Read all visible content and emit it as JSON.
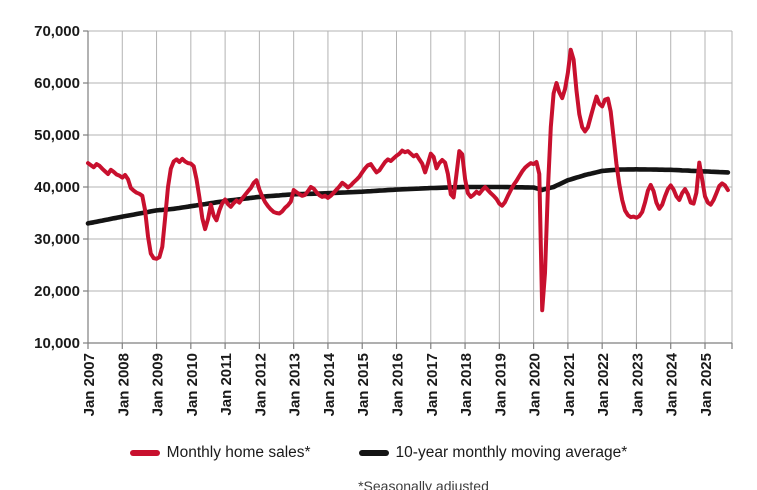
{
  "chart_data": {
    "type": "line",
    "title": "",
    "xlabel": "",
    "ylabel": "",
    "ylim": [
      10000,
      70000
    ],
    "y_tick_step": 10000,
    "grid": true,
    "legend_position": "bottom",
    "footnote": "*Seasonally adjusted",
    "y_tick_labels": [
      "10,000",
      "20,000",
      "30,000",
      "40,000",
      "50,000",
      "60,000",
      "70,000"
    ],
    "x_tick_labels": [
      "Jan 2007",
      "Jan 2008",
      "Jan 2009",
      "Jan 2010",
      "Jan 2011",
      "Jan 2012",
      "Jan 2013",
      "Jan 2014",
      "Jan 2015",
      "Jan 2016",
      "Jan 2017",
      "Jan 2018",
      "Jan 2019",
      "Jan 2020",
      "Jan 2021",
      "Jan 2022",
      "Jan 2023",
      "Jan 2024",
      "Jan 2025"
    ],
    "x_start_month": "Jan 2007",
    "x_end_month": "Sep 2025",
    "months_per_point": 1,
    "series": [
      {
        "name": "Monthly home sales*",
        "color": "#c8102e",
        "values": [
          44600,
          44200,
          43800,
          44400,
          44100,
          43500,
          43000,
          42500,
          43300,
          42900,
          42400,
          42200,
          41800,
          42300,
          41500,
          39800,
          39300,
          38900,
          38700,
          38300,
          35500,
          30500,
          27200,
          26300,
          26200,
          26500,
          28500,
          34000,
          40000,
          43500,
          44900,
          45300,
          44800,
          45400,
          44900,
          44600,
          44500,
          44000,
          41500,
          38000,
          34000,
          31900,
          33800,
          36600,
          34500,
          33600,
          35500,
          36900,
          37600,
          36700,
          36200,
          36900,
          37400,
          37000,
          37800,
          38500,
          39200,
          39800,
          40800,
          41300,
          39500,
          38200,
          37100,
          36300,
          35700,
          35200,
          35000,
          34900,
          35300,
          36000,
          36500,
          37200,
          39400,
          39000,
          38600,
          38300,
          38500,
          39200,
          40000,
          39700,
          39000,
          38400,
          38100,
          38300,
          37900,
          38300,
          38900,
          39500,
          40100,
          40800,
          40400,
          39900,
          40300,
          40900,
          41400,
          42000,
          42800,
          43600,
          44200,
          44400,
          43600,
          42800,
          43200,
          44000,
          44800,
          45300,
          45000,
          45500,
          46000,
          46400,
          47000,
          46700,
          46900,
          46400,
          45900,
          46200,
          45300,
          44500,
          42800,
          44500,
          46400,
          45800,
          43600,
          44600,
          45200,
          44700,
          42500,
          38600,
          38000,
          42500,
          46900,
          46300,
          41500,
          38800,
          38100,
          38500,
          39100,
          38700,
          39400,
          40000,
          39400,
          38800,
          38300,
          37700,
          36800,
          36400,
          37100,
          38300,
          39400,
          40400,
          41200,
          42100,
          43000,
          43700,
          44200,
          44600,
          44400,
          44800,
          42500,
          16300,
          23500,
          39500,
          51500,
          58000,
          60000,
          58200,
          57100,
          58800,
          62000,
          66400,
          64500,
          58500,
          54000,
          51500,
          50700,
          51500,
          53500,
          55500,
          57400,
          56000,
          55500,
          56800,
          57000,
          54500,
          49500,
          44500,
          40500,
          37500,
          35500,
          34600,
          34200,
          34300,
          34100,
          34400,
          35200,
          37000,
          39300,
          40400,
          39200,
          37000,
          35800,
          36600,
          38200,
          39600,
          40300,
          39500,
          38200,
          37500,
          38800,
          39600,
          38600,
          37000,
          36800,
          38900,
          44700,
          41500,
          38200,
          37000,
          36600,
          37500,
          38800,
          40200,
          40700,
          40300,
          39400
        ]
      },
      {
        "name": "10-year monthly moving average*",
        "color": "#141414",
        "anchors": [
          [
            0,
            33000
          ],
          [
            12,
            34300
          ],
          [
            24,
            35500
          ],
          [
            30,
            35800
          ],
          [
            36,
            36300
          ],
          [
            48,
            37300
          ],
          [
            60,
            38100
          ],
          [
            72,
            38600
          ],
          [
            84,
            38800
          ],
          [
            96,
            39100
          ],
          [
            108,
            39500
          ],
          [
            120,
            39800
          ],
          [
            132,
            40000
          ],
          [
            144,
            40000
          ],
          [
            156,
            39900
          ],
          [
            159,
            39450
          ],
          [
            163,
            40000
          ],
          [
            168,
            41300
          ],
          [
            174,
            42300
          ],
          [
            180,
            43100
          ],
          [
            186,
            43350
          ],
          [
            192,
            43400
          ],
          [
            204,
            43300
          ],
          [
            216,
            43000
          ],
          [
            224,
            42800
          ]
        ]
      }
    ]
  },
  "legend": {
    "items": [
      {
        "label": "Monthly home sales*",
        "color": "#c8102e"
      },
      {
        "label": "10-year monthly moving average*",
        "color": "#141414"
      }
    ]
  },
  "colors": {
    "gridline": "#b3b3b3",
    "axis": "#7f7f7f",
    "tick_text": "#1a1a1a",
    "background": "#ffffff"
  }
}
